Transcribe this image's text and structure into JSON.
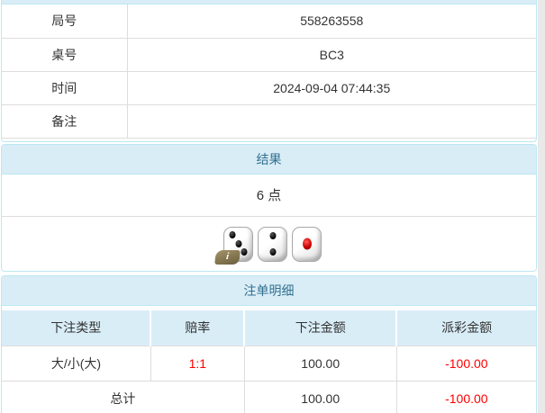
{
  "page": {
    "accent_bg": "#d9edf7",
    "accent_border": "#bce8f1",
    "accent_text": "#31708f",
    "text_color": "#333333",
    "negative_color": "#ff0000"
  },
  "info": {
    "rows": [
      {
        "label": "局号",
        "value": "558263558"
      },
      {
        "label": "桌号",
        "value": "BC3"
      },
      {
        "label": "时间",
        "value": "2024-09-04 07:44:35"
      },
      {
        "label": "备注",
        "value": ""
      }
    ]
  },
  "result": {
    "heading": "结果",
    "points": "6 点",
    "dice": [
      {
        "value": 3,
        "color": "black"
      },
      {
        "value": 2,
        "color": "black"
      },
      {
        "value": 1,
        "color": "red"
      }
    ],
    "info_badge": "i"
  },
  "bets": {
    "heading": "注单明细",
    "columns": [
      "下注类型",
      "赔率",
      "下注金额",
      "派彩金额"
    ],
    "rows": [
      {
        "type": "大/小(大)",
        "odds": "1:1",
        "amount": "100.00",
        "payout": "-100.00"
      }
    ],
    "total": {
      "label": "总计",
      "amount": "100.00",
      "payout": "-100.00"
    }
  }
}
